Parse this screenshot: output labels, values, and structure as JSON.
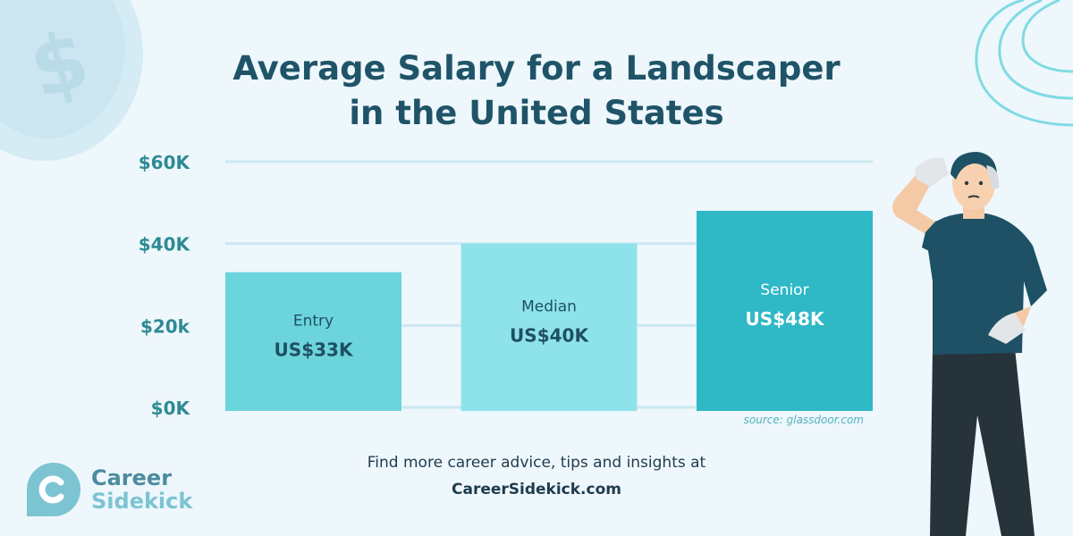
{
  "chart_data": {
    "type": "bar",
    "title": "Average Salary for a Landscaper in the United States",
    "title_lines": [
      "Average Salary for a Landscaper",
      "in the United States"
    ],
    "categories": [
      "Entry",
      "Median",
      "Senior"
    ],
    "values": [
      33,
      40,
      48
    ],
    "value_labels": [
      "US$33K",
      "US$40K",
      "US$48K"
    ],
    "unit": "thousand USD",
    "ylim": [
      0,
      60
    ],
    "yticks": [
      0,
      20,
      40,
      60
    ],
    "ytick_labels": [
      "$0K",
      "$20k",
      "$40K",
      "$60K"
    ],
    "xlabel": "",
    "ylabel": "",
    "grid": true,
    "bar_colors": [
      "#6cd4dc",
      "#8ee3ea",
      "#2fb8c6"
    ],
    "label_colors": [
      "#1f4f63",
      "#1f4f63",
      "#ffffff"
    ],
    "source": "source: glassdoor.com"
  },
  "footer": {
    "line1": "Find more career advice, tips and insights at",
    "line2": "CareerSidekick.com"
  },
  "logo": {
    "line1": "Career",
    "line2": "Sidekick",
    "icon": "c-logo-icon"
  },
  "decorations": {
    "coin_icon": "dollar-coin-icon",
    "person_illustration": "confused-landscaper-illustration"
  },
  "colors": {
    "background": "#eef7fc",
    "title": "#1f5468",
    "axis_label": "#2e8a94",
    "gridline": "#cbe8f1",
    "source": "#4fb3bf"
  }
}
